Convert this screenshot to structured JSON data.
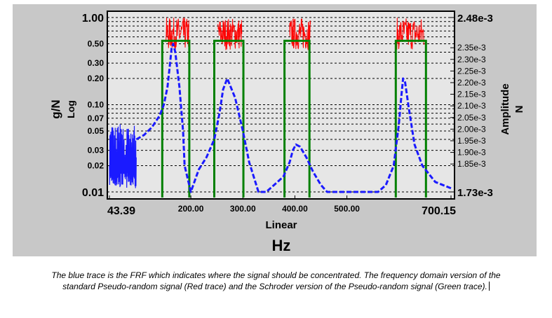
{
  "chart_data": {
    "type": "line",
    "title": "",
    "xlabel": "Hz",
    "x_scale_label": "Linear",
    "ylabel": "g/N",
    "y_scale_label": "Log",
    "y2label": "N",
    "y2_quantity_label": "Amplitude",
    "xlim": [
      43.39,
      700.15
    ],
    "ylim": [
      0.01,
      1.0
    ],
    "y2lim": [
      0.00173,
      0.00248
    ],
    "x_ticks": [
      {
        "value": 43.39,
        "label": "43.39"
      },
      {
        "value": 200,
        "label": "200.00"
      },
      {
        "value": 300,
        "label": "300.00"
      },
      {
        "value": 400,
        "label": "400.00"
      },
      {
        "value": 500,
        "label": "500.00"
      },
      {
        "value": 700.15,
        "label": "700.15"
      }
    ],
    "y_ticks": [
      {
        "value": 1.0,
        "label": "1.00"
      },
      {
        "value": 0.5,
        "label": "0.50"
      },
      {
        "value": 0.3,
        "label": "0.30"
      },
      {
        "value": 0.2,
        "label": "0.20"
      },
      {
        "value": 0.1,
        "label": "0.10"
      },
      {
        "value": 0.07,
        "label": "0.07"
      },
      {
        "value": 0.05,
        "label": "0.05"
      },
      {
        "value": 0.03,
        "label": "0.03"
      },
      {
        "value": 0.02,
        "label": "0.02"
      },
      {
        "value": 0.01,
        "label": "0.01"
      }
    ],
    "y_minor_gridlines": [
      0.9,
      0.8,
      0.7,
      0.6,
      0.4,
      0.09,
      0.08,
      0.06,
      0.04
    ],
    "y2_ticks": [
      {
        "value": 0.00248,
        "label": "2.48e-3"
      },
      {
        "value": 0.00235,
        "label": "2.35e-3"
      },
      {
        "value": 0.0023,
        "label": "2.30e-3"
      },
      {
        "value": 0.00225,
        "label": "2.25e-3"
      },
      {
        "value": 0.0022,
        "label": "2.20e-3"
      },
      {
        "value": 0.00215,
        "label": "2.15e-3"
      },
      {
        "value": 0.0021,
        "label": "2.10e-3"
      },
      {
        "value": 0.00205,
        "label": "2.05e-3"
      },
      {
        "value": 0.002,
        "label": "2.00e-3"
      },
      {
        "value": 0.00195,
        "label": "1.95e-3"
      },
      {
        "value": 0.0019,
        "label": "1.90e-3"
      },
      {
        "value": 0.00185,
        "label": "1.85e-3"
      },
      {
        "value": 0.00173,
        "label": "1.73e-3"
      }
    ],
    "grid": true,
    "series": [
      {
        "name": "FRF (blue trace)",
        "color": "#1a1aff",
        "style": "dashed",
        "noise_band": {
          "x": [
            43.39,
            95
          ],
          "low": 0.011,
          "high": 0.06
        },
        "x": [
          95,
          110,
          125,
          140,
          148,
          155,
          160,
          163,
          166,
          170,
          178,
          185,
          188,
          200,
          215,
          230,
          245,
          255,
          262,
          270,
          285,
          300,
          312,
          330,
          345,
          360,
          378,
          390,
          396,
          402,
          410,
          422,
          435,
          450,
          462,
          560,
          575,
          590,
          600,
          605,
          608,
          612,
          618,
          630,
          645,
          670,
          700.15
        ],
        "y": [
          0.04,
          0.045,
          0.055,
          0.075,
          0.1,
          0.16,
          0.3,
          0.45,
          0.5,
          0.4,
          0.16,
          0.05,
          0.02,
          0.01,
          0.018,
          0.025,
          0.04,
          0.08,
          0.15,
          0.2,
          0.12,
          0.05,
          0.022,
          0.01,
          0.01,
          0.012,
          0.015,
          0.022,
          0.03,
          0.035,
          0.033,
          0.025,
          0.017,
          0.012,
          0.01,
          0.01,
          0.012,
          0.02,
          0.06,
          0.13,
          0.2,
          0.18,
          0.1,
          0.035,
          0.02,
          0.013,
          0.011
        ]
      },
      {
        "name": "Pseudo-random signal (red trace)",
        "color": "#ff0000",
        "axis": "y2",
        "level": 0.0024,
        "low": 0.00234,
        "high": 0.00248,
        "bands": [
          [
            152,
            196
          ],
          [
            252,
            298
          ],
          [
            390,
            430
          ],
          [
            596,
            648
          ]
        ]
      },
      {
        "name": "Schroder pseudo-random signal (green trace)",
        "color": "#008000",
        "axis": "y2",
        "level": 0.00238,
        "bands": [
          [
            145,
            197
          ],
          [
            245,
            301
          ],
          [
            380,
            428
          ],
          [
            594,
            652
          ]
        ]
      }
    ]
  },
  "caption": {
    "line1": "The blue trace is the FRF which indicates where the signal should be concentrated. The frequency domain version of the",
    "line2": "standard Pseudo-random signal (Red trace) and the Schroder version of the Pseudo-random signal (Green trace)."
  }
}
